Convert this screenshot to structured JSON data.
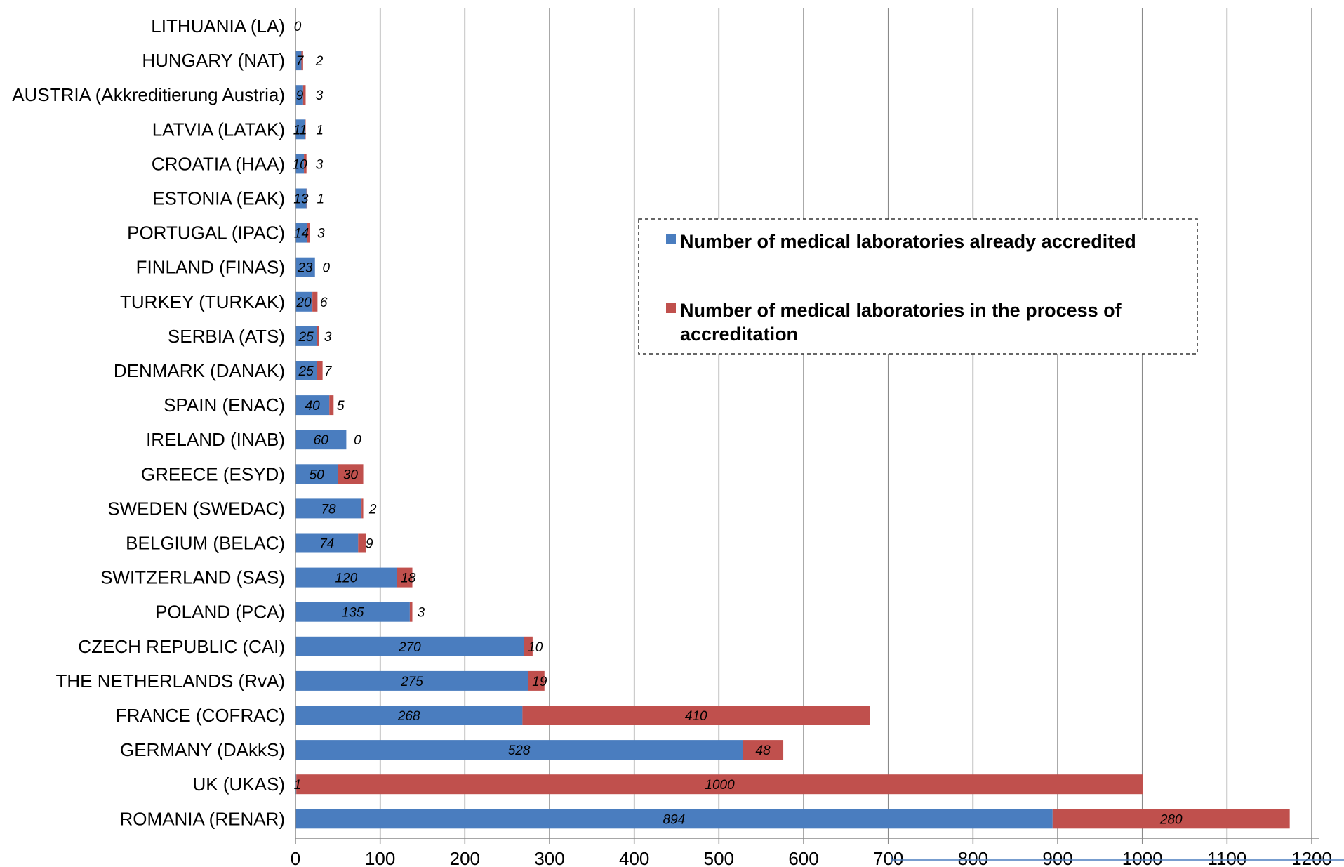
{
  "chart_data": {
    "type": "bar",
    "orientation": "horizontal",
    "stacked": true,
    "categories": [
      "LITHUANIA (LA)",
      "HUNGARY (NAT)",
      "AUSTRIA (Akkreditierung Austria)",
      "LATVIA (LATAK)",
      "CROATIA (HAA)",
      "ESTONIA (EAK)",
      "PORTUGAL (IPAC)",
      "FINLAND (FINAS)",
      "TURKEY (TURKAK)",
      "SERBIA (ATS)",
      "DENMARK (DANAK)",
      "SPAIN (ENAC)",
      "IRELAND (INAB)",
      "GREECE (ESYD)",
      "SWEDEN (SWEDAC)",
      "BELGIUM (BELAC)",
      "SWITZERLAND (SAS)",
      "POLAND (PCA)",
      "CZECH REPUBLIC (CAI)",
      "THE NETHERLANDS (RvA)",
      "FRANCE (COFRAC)",
      "GERMANY (DAkkS)",
      "UK (UKAS)",
      "ROMANIA (RENAR)"
    ],
    "series": [
      {
        "name": "Number of medical laboratories already accredited",
        "color": "#4a7dbf",
        "values": [
          0,
          7,
          9,
          11,
          10,
          13,
          14,
          23,
          20,
          25,
          25,
          40,
          60,
          50,
          78,
          74,
          120,
          135,
          270,
          275,
          268,
          528,
          1,
          894
        ]
      },
      {
        "name": "Number of medical laboratories in the process of accreditation",
        "color": "#c0504d",
        "values": [
          0,
          2,
          3,
          1,
          3,
          1,
          3,
          0,
          6,
          3,
          7,
          5,
          0,
          30,
          2,
          9,
          18,
          3,
          10,
          19,
          410,
          48,
          1000,
          280
        ]
      }
    ],
    "xlim": [
      0,
      1200
    ],
    "xticks": [
      "0",
      "100",
      "200",
      "300",
      "400",
      "500",
      "600",
      "700",
      "800",
      "900",
      "1000",
      "1100",
      "1200"
    ],
    "grid": "vertical",
    "legend": {
      "placement": "center-right",
      "border": "dashed"
    },
    "title": "",
    "xlabel": "",
    "ylabel": ""
  }
}
